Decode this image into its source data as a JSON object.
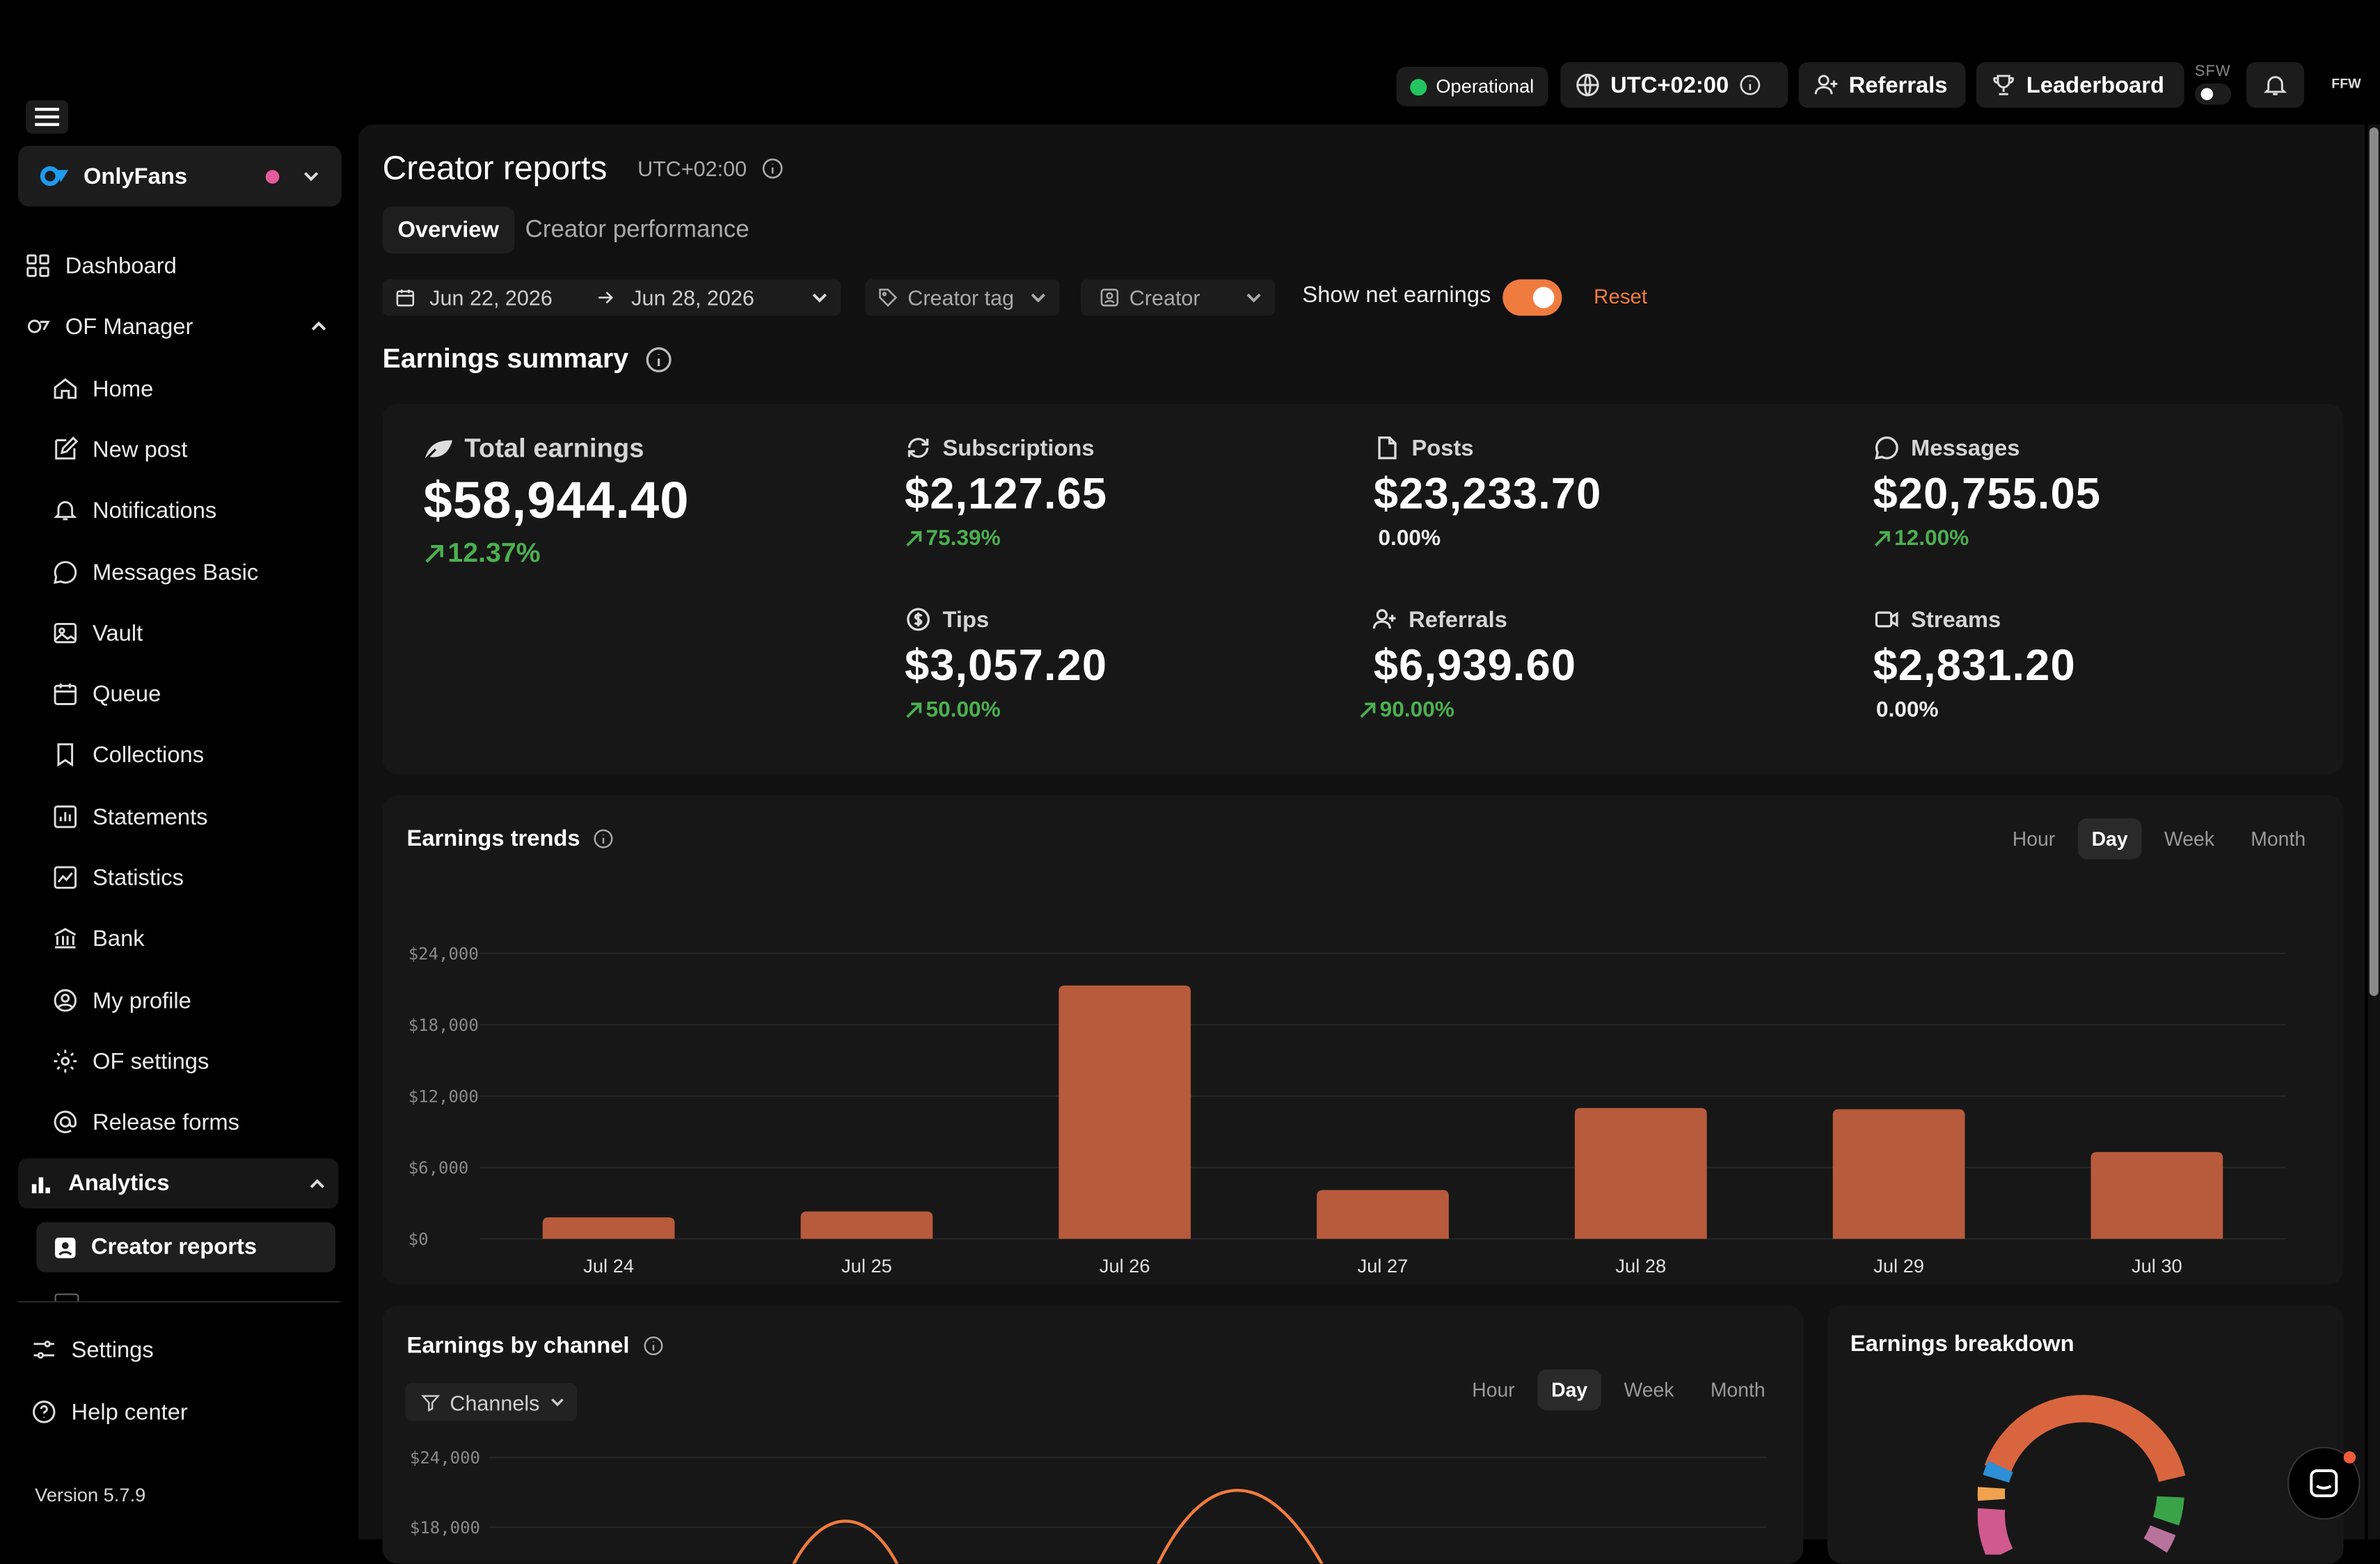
{
  "topbar": {
    "status": "Operational",
    "timezone": "UTC+02:00",
    "referrals": "Referrals",
    "leaderboard": "Leaderboard",
    "sfw": "SFW",
    "avatar_initials": "FFW"
  },
  "sidebar": {
    "account": "OnlyFans",
    "items": {
      "dashboard": "Dashboard",
      "of_manager": "OF Manager",
      "home": "Home",
      "new_post": "New post",
      "notifications": "Notifications",
      "messages_basic": "Messages Basic",
      "vault": "Vault",
      "queue": "Queue",
      "collections": "Collections",
      "statements": "Statements",
      "statistics": "Statistics",
      "bank": "Bank",
      "my_profile": "My profile",
      "of_settings": "OF settings",
      "release_forms": "Release forms",
      "analytics": "Analytics",
      "creator_reports": "Creator reports",
      "settings": "Settings",
      "help_center": "Help center"
    },
    "version": "Version 5.7.9"
  },
  "page": {
    "title": "Creator reports",
    "tz": "UTC+02:00",
    "tabs": [
      "Overview",
      "Creator performance"
    ],
    "date_start": "Jun 22, 2026",
    "date_end": "Jun 28, 2026",
    "creator_tag": "Creator tag",
    "creator": "Creator",
    "net_label": "Show net earnings",
    "reset": "Reset"
  },
  "summary": {
    "title": "Earnings summary",
    "total": {
      "label": "Total earnings",
      "value": "$58,944.40",
      "delta": "12.37%"
    },
    "kpis": [
      {
        "label": "Subscriptions",
        "value": "$2,127.65",
        "delta": "75.39%",
        "up": true
      },
      {
        "label": "Posts",
        "value": "$23,233.70",
        "delta": "0.00%",
        "up": false
      },
      {
        "label": "Messages",
        "value": "$20,755.05",
        "delta": "12.00%",
        "up": true
      },
      {
        "label": "Tips",
        "value": "$3,057.20",
        "delta": "50.00%",
        "up": true
      },
      {
        "label": "Referrals",
        "value": "$6,939.60",
        "delta": "90.00%",
        "up": true
      },
      {
        "label": "Streams",
        "value": "$2,831.20",
        "delta": "0.00%",
        "up": false
      }
    ]
  },
  "trends": {
    "title": "Earnings trends",
    "periods": [
      "Hour",
      "Day",
      "Week",
      "Month"
    ],
    "active_period": "Day"
  },
  "channel": {
    "title": "Earnings by channel",
    "filter": "Channels",
    "periods": [
      "Hour",
      "Day",
      "Week",
      "Month"
    ],
    "active_period": "Day",
    "ytick_labels": [
      "$24,000",
      "$18,000"
    ]
  },
  "breakdown": {
    "title": "Earnings breakdown"
  },
  "colors": {
    "accent": "#f07b3f",
    "bar": "#b85a3c",
    "up": "#4caf50",
    "status": "#22c55e"
  },
  "chart_data": {
    "type": "bar",
    "categories": [
      "Jul 24",
      "Jul 25",
      "Jul 26",
      "Jul 27",
      "Jul 28",
      "Jul 29",
      "Jul 30"
    ],
    "values": [
      1800,
      2300,
      21300,
      4100,
      11000,
      10900,
      7300
    ],
    "ytick_labels": [
      "$0",
      "$6,000",
      "$12,000",
      "$18,000",
      "$24,000"
    ],
    "ylim": [
      0,
      24000
    ],
    "grid": true
  }
}
